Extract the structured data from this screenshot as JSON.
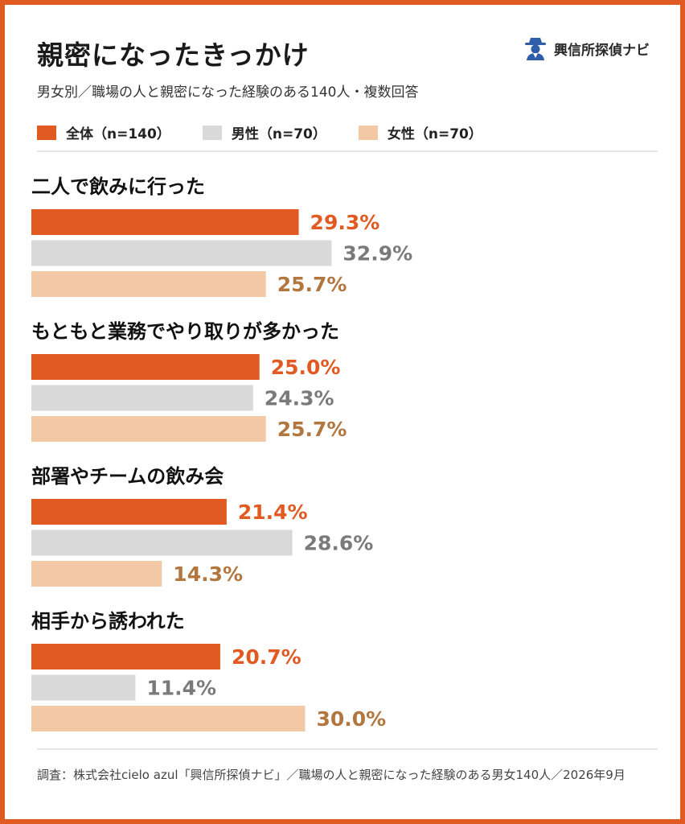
{
  "header": {
    "title": "親密になったきっかけ",
    "subtitle": "男女別／職場の人と親密になった経験のある140人・複数回答",
    "brand": "興信所探偵ナビ",
    "brand_icon": "detective-icon"
  },
  "colors": {
    "frame": "#E05A22",
    "all": "#E05A22",
    "male": "#D9D9D9",
    "female": "#F2C8A5",
    "all_text": "#E05A22",
    "male_text": "#7A7A7A",
    "female_text": "#B2773F"
  },
  "chart_data": {
    "type": "bar",
    "orientation": "horizontal",
    "categories": [
      "二人で飲みに行った",
      "もともと業務でやり取りが多かった",
      "部署やチームの飲み会",
      "相手から誘われた"
    ],
    "series": [
      {
        "name": "全体（n=140）",
        "values": [
          29.3,
          25.0,
          21.4,
          20.7
        ],
        "labels": [
          "29.3%",
          "25.0%",
          "21.4%",
          "20.7%"
        ]
      },
      {
        "name": "男性（n=70）",
        "values": [
          32.9,
          24.3,
          28.6,
          11.4
        ],
        "labels": [
          "32.9%",
          "24.3%",
          "28.6%",
          "11.4%"
        ]
      },
      {
        "name": "女性（n=70）",
        "values": [
          25.7,
          25.7,
          14.3,
          30.0
        ],
        "labels": [
          "25.7%",
          "25.7%",
          "14.3%",
          "30.0%"
        ]
      }
    ],
    "legend": "top-left",
    "grid": false
  },
  "footer": {
    "text": "調査：株式会社cielo azul「興信所探偵ナビ」／職場の人と親密になった経験のある男女140人／2026年9月"
  }
}
